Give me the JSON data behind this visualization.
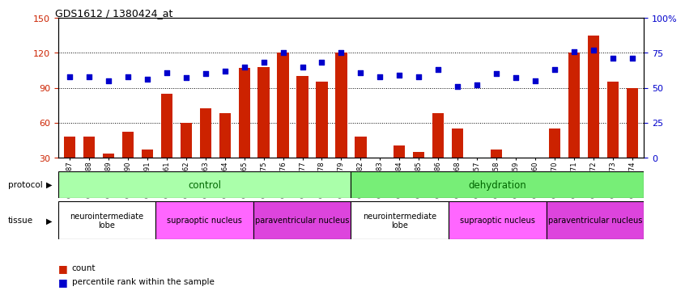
{
  "title": "GDS1612 / 1380424_at",
  "categories": [
    "GSM69787",
    "GSM69788",
    "GSM69789",
    "GSM69790",
    "GSM69791",
    "GSM69461",
    "GSM69462",
    "GSM69463",
    "GSM69464",
    "GSM69465",
    "GSM69475",
    "GSM69476",
    "GSM69477",
    "GSM69478",
    "GSM69479",
    "GSM69782",
    "GSM69783",
    "GSM69784",
    "GSM69785",
    "GSM69786",
    "GSM69268",
    "GSM69457",
    "GSM69458",
    "GSM69459",
    "GSM69460",
    "GSM69470",
    "GSM69471",
    "GSM69472",
    "GSM69473",
    "GSM69474"
  ],
  "bar_values": [
    48,
    48,
    33,
    52,
    37,
    85,
    60,
    72,
    68,
    107,
    108,
    120,
    100,
    95,
    120,
    48,
    20,
    40,
    35,
    68,
    55,
    27,
    37,
    28,
    20,
    55,
    120,
    135,
    95,
    90
  ],
  "percentile_values": [
    58,
    58,
    55,
    58,
    56,
    61,
    57,
    60,
    62,
    65,
    68,
    75,
    65,
    68,
    75,
    61,
    58,
    59,
    58,
    63,
    51,
    52,
    60,
    57,
    55,
    63,
    76,
    77,
    71,
    71
  ],
  "ylim_left": [
    30,
    150
  ],
  "ylim_right": [
    0,
    100
  ],
  "yticks_left": [
    30,
    60,
    90,
    120,
    150
  ],
  "yticks_right": [
    0,
    25,
    50,
    75,
    100
  ],
  "bar_color": "#cc2200",
  "dot_color": "#0000cc",
  "protocol_groups": [
    {
      "label": "control",
      "start": 0,
      "end": 14,
      "color": "#aaffaa"
    },
    {
      "label": "dehydration",
      "start": 15,
      "end": 29,
      "color": "#77ee77"
    }
  ],
  "tissue_groups": [
    {
      "label": "neurointermediate\nlobe",
      "start": 0,
      "end": 4,
      "color": "#ffffff"
    },
    {
      "label": "supraoptic nucleus",
      "start": 5,
      "end": 9,
      "color": "#ff66ff"
    },
    {
      "label": "paraventricular nucleus",
      "start": 10,
      "end": 14,
      "color": "#dd44dd"
    },
    {
      "label": "neurointermediate\nlobe",
      "start": 15,
      "end": 19,
      "color": "#ffffff"
    },
    {
      "label": "supraoptic nucleus",
      "start": 20,
      "end": 24,
      "color": "#ff66ff"
    },
    {
      "label": "paraventricular nucleus",
      "start": 25,
      "end": 29,
      "color": "#dd44dd"
    }
  ]
}
